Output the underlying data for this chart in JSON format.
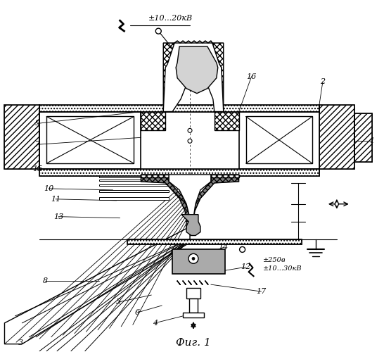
{
  "title": "Фиг. 1",
  "bg_color": "#ffffff",
  "figsize": [
    5.46,
    5.0
  ],
  "dpi": 100,
  "voltage_top": "±10...20кВ",
  "voltage_bot": "±10...30кВ",
  "voltage_mid": "±250в",
  "labels": [
    "1",
    "2",
    "3",
    "4",
    "5",
    "6",
    "7",
    "8",
    "9",
    "10",
    "11",
    "12",
    "13",
    "14",
    "15",
    "16",
    "17"
  ]
}
